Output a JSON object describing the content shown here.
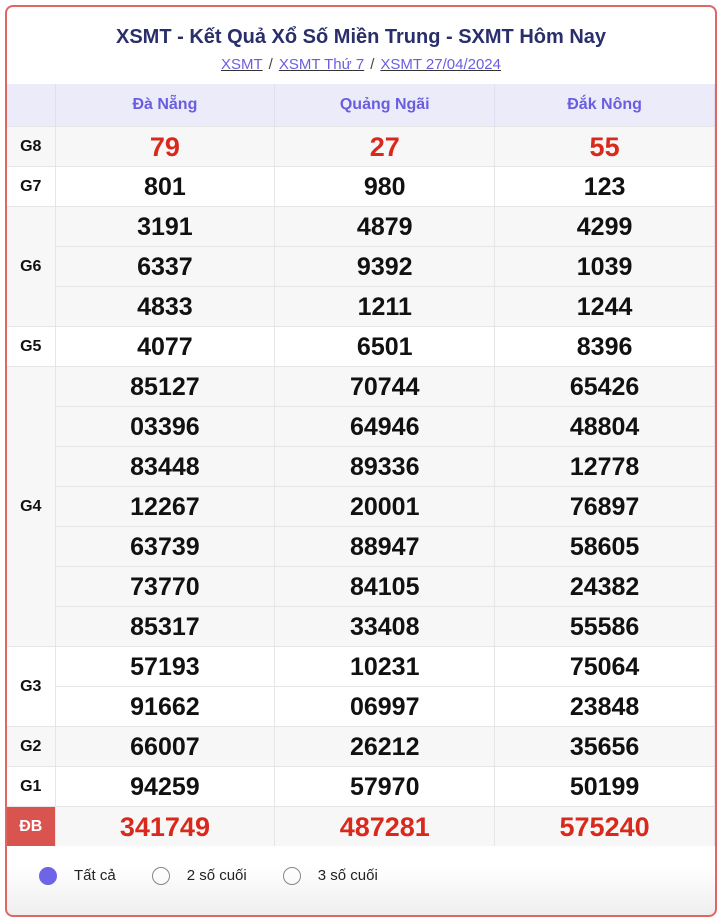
{
  "title": "XSMT - Kết Quả Xổ Số Miền Trung - SXMT Hôm Nay",
  "breadcrumb": [
    "XSMT",
    "XSMT Thứ 7",
    "XSMT 27/04/2024"
  ],
  "provinces": [
    "Đà Nẵng",
    "Quảng Ngãi",
    "Đắk Nông"
  ],
  "prizes": [
    {
      "label": "G8",
      "red": true,
      "rows": [
        [
          "79",
          "27",
          "55"
        ]
      ]
    },
    {
      "label": "G7",
      "rows": [
        [
          "801",
          "980",
          "123"
        ]
      ]
    },
    {
      "label": "G6",
      "rows": [
        [
          "3191",
          "4879",
          "4299"
        ],
        [
          "6337",
          "9392",
          "1039"
        ],
        [
          "4833",
          "1211",
          "1244"
        ]
      ]
    },
    {
      "label": "G5",
      "rows": [
        [
          "4077",
          "6501",
          "8396"
        ]
      ]
    },
    {
      "label": "G4",
      "rows": [
        [
          "85127",
          "70744",
          "65426"
        ],
        [
          "03396",
          "64946",
          "48804"
        ],
        [
          "83448",
          "89336",
          "12778"
        ],
        [
          "12267",
          "20001",
          "76897"
        ],
        [
          "63739",
          "88947",
          "58605"
        ],
        [
          "73770",
          "84105",
          "24382"
        ],
        [
          "85317",
          "33408",
          "55586"
        ]
      ]
    },
    {
      "label": "G3",
      "rows": [
        [
          "57193",
          "10231",
          "75064"
        ],
        [
          "91662",
          "06997",
          "23848"
        ]
      ]
    },
    {
      "label": "G2",
      "rows": [
        [
          "66007",
          "26212",
          "35656"
        ]
      ]
    },
    {
      "label": "G1",
      "rows": [
        [
          "94259",
          "57970",
          "50199"
        ]
      ]
    },
    {
      "label": "ĐB",
      "red": true,
      "special": true,
      "rows": [
        [
          "341749",
          "487281",
          "575240"
        ]
      ]
    }
  ],
  "options": [
    {
      "label": "Tất cả",
      "selected": true
    },
    {
      "label": "2 số cuối",
      "selected": false
    },
    {
      "label": "3 số cuối",
      "selected": false
    }
  ],
  "colors": {
    "accent": "#6f63e6",
    "red": "#d9291c",
    "border": "#e06666"
  }
}
